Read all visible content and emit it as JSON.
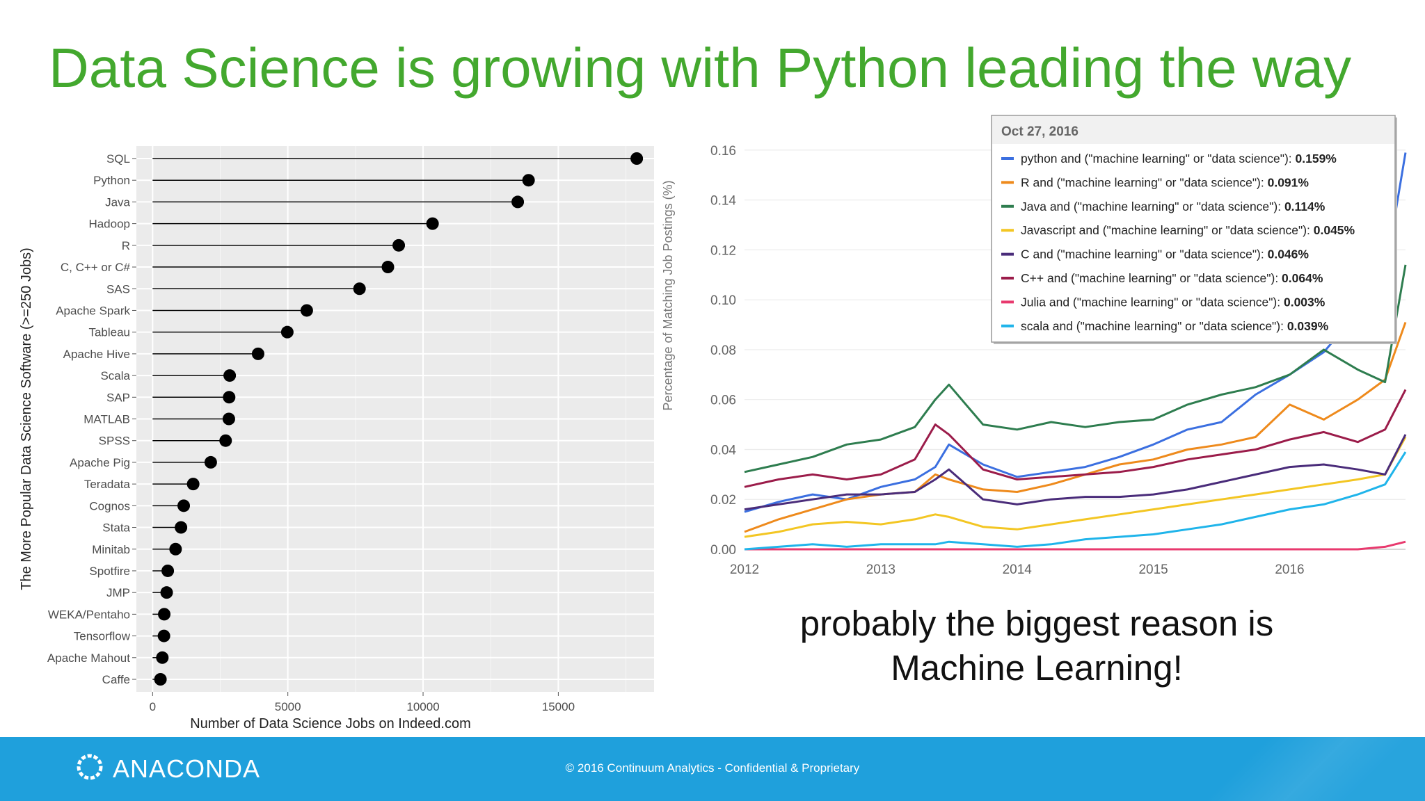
{
  "slide": {
    "title": "Data Science is growing with Python leading the way",
    "caption_line1": "probably the biggest reason is",
    "caption_line2": "Machine Learning!"
  },
  "footer": {
    "brand": "ANACONDA",
    "notice": "© 2016 Continuum Analytics - Confidential & Proprietary",
    "logo_icon": "anaconda-ring-icon",
    "background_color": "#1fa0dc"
  },
  "chart_data": [
    {
      "type": "scatter",
      "style": "lollipop",
      "xlabel": "Number of Data Science Jobs on Indeed.com",
      "ylabel": "The More Popular Data Science Software (>=250 Jobs)",
      "xlim": [
        -600,
        18900
      ],
      "xticks": [
        0,
        5000,
        10000,
        15000
      ],
      "grid": true,
      "legend": "none",
      "categories": [
        "SQL",
        "Python",
        "Java",
        "Hadoop",
        "R",
        "C, C++ or C#",
        "SAS",
        "Apache Spark",
        "Tableau",
        "Apache Hive",
        "Scala",
        "SAP",
        "MATLAB",
        "SPSS",
        "Apache Pig",
        "Teradata",
        "Cognos",
        "Stata",
        "Minitab",
        "Spotfire",
        "JMP",
        "WEKA/Pentaho",
        "Tensorflow",
        "Apache Mahout",
        "Caffe"
      ],
      "values": [
        17900,
        13900,
        13500,
        10350,
        9100,
        8700,
        7650,
        5700,
        4980,
        3900,
        2850,
        2830,
        2820,
        2700,
        2150,
        1500,
        1150,
        1050,
        850,
        560,
        520,
        430,
        420,
        360,
        290
      ]
    },
    {
      "type": "line",
      "ylabel": "Percentage of Matching Job Postings (%)",
      "xlabel": "",
      "xlim": [
        2012,
        2016.85
      ],
      "ylim": [
        0,
        0.17
      ],
      "xticks": [
        2012,
        2013,
        2014,
        2015,
        2016
      ],
      "yticks": [
        "0.00",
        "0.02",
        "0.04",
        "0.06",
        "0.08",
        "0.10",
        "0.12",
        "0.14",
        "0.16"
      ],
      "grid": true,
      "legend": "top-right",
      "tooltip_date": "Oct 27, 2016",
      "x": [
        2012,
        2012.25,
        2012.5,
        2012.75,
        2013,
        2013.25,
        2013.4,
        2013.5,
        2013.75,
        2014,
        2014.25,
        2014.5,
        2014.75,
        2015,
        2015.25,
        2015.5,
        2015.75,
        2016,
        2016.25,
        2016.5,
        2016.7,
        2016.85
      ],
      "series": [
        {
          "name": "python and (\"machine learning\" or \"data science\"): ",
          "value_label": "0.159%",
          "color": "#3b6fe0",
          "values": [
            0.015,
            0.019,
            0.022,
            0.02,
            0.025,
            0.028,
            0.033,
            0.042,
            0.034,
            0.029,
            0.031,
            0.033,
            0.037,
            0.042,
            0.048,
            0.051,
            0.062,
            0.07,
            0.079,
            0.095,
            0.11,
            0.159
          ]
        },
        {
          "name": "R and (\"machine learning\" or \"data science\"): ",
          "value_label": "0.091%",
          "color": "#ee8a1c",
          "values": [
            0.007,
            0.012,
            0.016,
            0.02,
            0.022,
            0.023,
            0.03,
            0.028,
            0.024,
            0.023,
            0.026,
            0.03,
            0.034,
            0.036,
            0.04,
            0.042,
            0.045,
            0.058,
            0.052,
            0.06,
            0.068,
            0.091
          ]
        },
        {
          "name": "Java and (\"machine learning\" or \"data science\"): ",
          "value_label": "0.114%",
          "color": "#2e7d4f",
          "values": [
            0.031,
            0.034,
            0.037,
            0.042,
            0.044,
            0.049,
            0.06,
            0.066,
            0.05,
            0.048,
            0.051,
            0.049,
            0.051,
            0.052,
            0.058,
            0.062,
            0.065,
            0.07,
            0.08,
            0.072,
            0.067,
            0.114
          ]
        },
        {
          "name": "Javascript and (\"machine learning\" or \"data science\"): ",
          "value_label": "0.045%",
          "color": "#f3c623",
          "values": [
            0.005,
            0.007,
            0.01,
            0.011,
            0.01,
            0.012,
            0.014,
            0.013,
            0.009,
            0.008,
            0.01,
            0.012,
            0.014,
            0.016,
            0.018,
            0.02,
            0.022,
            0.024,
            0.026,
            0.028,
            0.03,
            0.045
          ]
        },
        {
          "name": "C and (\"machine learning\" or \"data science\"): ",
          "value_label": "0.046%",
          "color": "#4a2c7a",
          "values": [
            0.016,
            0.018,
            0.02,
            0.022,
            0.022,
            0.023,
            0.028,
            0.032,
            0.02,
            0.018,
            0.02,
            0.021,
            0.021,
            0.022,
            0.024,
            0.027,
            0.03,
            0.033,
            0.034,
            0.032,
            0.03,
            0.046
          ]
        },
        {
          "name": "C++ and (\"machine learning\" or \"data science\"): ",
          "value_label": "0.064%",
          "color": "#9b1c4a",
          "values": [
            0.025,
            0.028,
            0.03,
            0.028,
            0.03,
            0.036,
            0.05,
            0.046,
            0.032,
            0.028,
            0.029,
            0.03,
            0.031,
            0.033,
            0.036,
            0.038,
            0.04,
            0.044,
            0.047,
            0.043,
            0.048,
            0.064
          ]
        },
        {
          "name": "Julia and (\"machine learning\" or \"data science\"): ",
          "value_label": "0.003%",
          "color": "#e8396e",
          "values": [
            0,
            0,
            0,
            0,
            0,
            0,
            0,
            0,
            0,
            0,
            0,
            0,
            0,
            0,
            0,
            0,
            0,
            0,
            0,
            0,
            0.001,
            0.003
          ]
        },
        {
          "name": "scala and (\"machine learning\" or \"data science\"): ",
          "value_label": "0.039%",
          "color": "#1fb4ea",
          "values": [
            0.0,
            0.001,
            0.002,
            0.001,
            0.002,
            0.002,
            0.002,
            0.003,
            0.002,
            0.001,
            0.002,
            0.004,
            0.005,
            0.006,
            0.008,
            0.01,
            0.013,
            0.016,
            0.018,
            0.022,
            0.026,
            0.039
          ]
        }
      ]
    }
  ]
}
